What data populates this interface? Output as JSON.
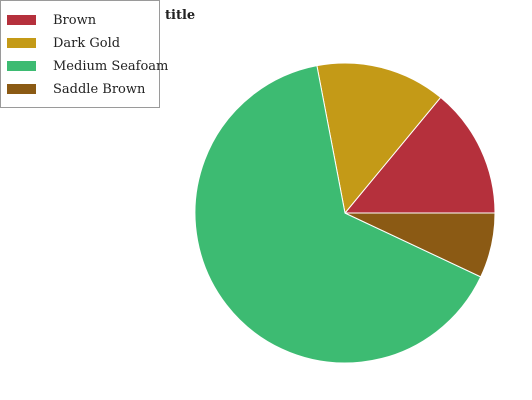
{
  "chart_data": {
    "type": "pie",
    "title": "title",
    "legend_position": "top-left",
    "slices": [
      {
        "label": "Brown",
        "value": 14,
        "color": "#b5303c"
      },
      {
        "label": "Dark Gold",
        "value": 14,
        "color": "#c49a17"
      },
      {
        "label": "Medium Seafoam",
        "value": 65,
        "color": "#3dbb72"
      },
      {
        "label": "Saddle Brown",
        "value": 7,
        "color": "#8b5a14"
      }
    ]
  }
}
